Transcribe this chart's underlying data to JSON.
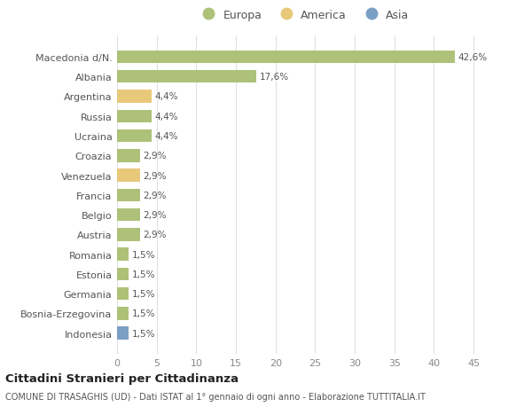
{
  "categories": [
    "Macedonia d/N.",
    "Albania",
    "Argentina",
    "Russia",
    "Ucraina",
    "Croazia",
    "Venezuela",
    "Francia",
    "Belgio",
    "Austria",
    "Romania",
    "Estonia",
    "Germania",
    "Bosnia-Erzegovina",
    "Indonesia"
  ],
  "values": [
    42.6,
    17.6,
    4.4,
    4.4,
    4.4,
    2.9,
    2.9,
    2.9,
    2.9,
    2.9,
    1.5,
    1.5,
    1.5,
    1.5,
    1.5
  ],
  "labels": [
    "42,6%",
    "17,6%",
    "4,4%",
    "4,4%",
    "4,4%",
    "2,9%",
    "2,9%",
    "2,9%",
    "2,9%",
    "2,9%",
    "1,5%",
    "1,5%",
    "1,5%",
    "1,5%",
    "1,5%"
  ],
  "colors": [
    "#adc178",
    "#adc178",
    "#e8c97a",
    "#adc178",
    "#adc178",
    "#adc178",
    "#e8c97a",
    "#adc178",
    "#adc178",
    "#adc178",
    "#adc178",
    "#adc178",
    "#adc178",
    "#adc178",
    "#7b9fc4"
  ],
  "legend_labels": [
    "Europa",
    "America",
    "Asia"
  ],
  "legend_colors": [
    "#adc178",
    "#e8c97a",
    "#7b9fc4"
  ],
  "xlim": [
    0,
    47
  ],
  "xticks": [
    0,
    5,
    10,
    15,
    20,
    25,
    30,
    35,
    40,
    45
  ],
  "title_main": "Cittadini Stranieri per Cittadinanza",
  "title_sub": "COMUNE DI TRASAGHIS (UD) - Dati ISTAT al 1° gennaio di ogni anno - Elaborazione TUTTITALIA.IT",
  "bg_color": "#ffffff",
  "grid_color": "#e0e0e0",
  "label_color": "#555555",
  "tick_color": "#888888"
}
